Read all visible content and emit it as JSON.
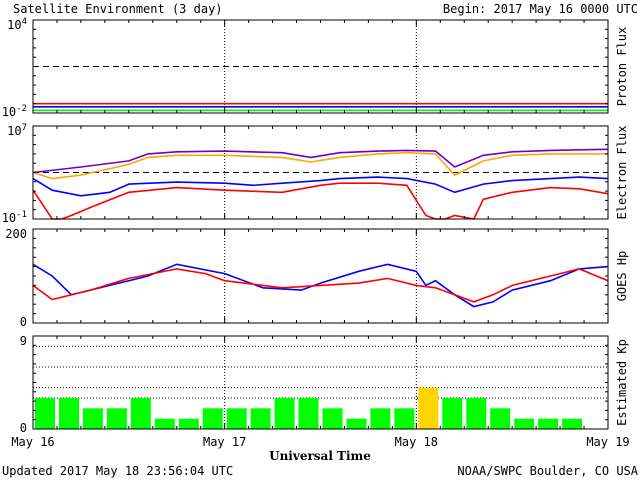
{
  "header": {
    "title": "Satellite Environment (3 day)",
    "begin": "Begin:  2017 May 16 0000 UTC"
  },
  "footer": {
    "updated": "Updated 2017 May 18 23:56:04 UTC",
    "credit": "NOAA/SWPC Boulder, CO USA"
  },
  "colors": {
    "red": "#ff0000",
    "blue": "#0000ff",
    "green": "#00ff00",
    "orange": "#ffa500",
    "purple": "#6a00c8",
    "kp_green": "#00ff00",
    "kp_yellow": "#ffd400"
  },
  "chart_data": [
    {
      "type": "line",
      "panel": "proton",
      "ylabel": "Proton Flux",
      "yscale": "log",
      "yticks": [
        {
          "mant": "10",
          "exp": "4"
        },
        {
          "mant": "10",
          "exp": "-2"
        }
      ],
      "ylim": [
        0.01,
        10000
      ],
      "threshold": 10,
      "x_range_days": [
        0,
        3
      ],
      "series": [
        {
          "color_key": "red",
          "x": [
            0,
            0.5,
            1,
            1.5,
            1.7,
            2,
            2.5,
            3
          ],
          "y": [
            0.04,
            0.04,
            0.04,
            0.04,
            0.04,
            0.04,
            0.04,
            0.04
          ]
        },
        {
          "color_key": "blue",
          "x": [
            0,
            0.5,
            1,
            1.5,
            1.7,
            2,
            2.5,
            3
          ],
          "y": [
            0.025,
            0.025,
            0.025,
            0.025,
            0.025,
            0.025,
            0.025,
            0.025
          ]
        },
        {
          "color_key": "green",
          "x": [
            0,
            0.5,
            1,
            1.5,
            1.7,
            2,
            2.5,
            3
          ],
          "y": [
            0.015,
            0.015,
            0.015,
            0.015,
            0.015,
            0.015,
            0.015,
            0.015
          ]
        }
      ]
    },
    {
      "type": "line",
      "panel": "electron",
      "ylabel": "Electron Flux",
      "yscale": "log",
      "yticks": [
        {
          "mant": "10",
          "exp": "7"
        },
        {
          "mant": "10",
          "exp": "-1"
        }
      ],
      "ylim": [
        0.1,
        10000000
      ],
      "threshold": 1000,
      "x_range_days": [
        0,
        3
      ],
      "series": [
        {
          "color_key": "purple",
          "x": [
            0,
            0.25,
            0.5,
            0.6,
            0.75,
            1,
            1.3,
            1.45,
            1.6,
            1.8,
            1.95,
            2.1,
            2.2,
            2.35,
            2.5,
            2.7,
            2.85,
            3
          ],
          "y": [
            1000,
            3000,
            10000,
            40000,
            60000,
            70000,
            50000,
            20000,
            50000,
            70000,
            80000,
            70000,
            3000,
            30000,
            60000,
            80000,
            90000,
            100000
          ]
        },
        {
          "color_key": "orange",
          "x": [
            0,
            0.1,
            0.25,
            0.5,
            0.6,
            0.75,
            1,
            1.3,
            1.45,
            1.6,
            1.8,
            1.95,
            2.1,
            2.2,
            2.35,
            2.5,
            2.7,
            2.85,
            3
          ],
          "y": [
            1000,
            300,
            600,
            5000,
            20000,
            30000,
            30000,
            20000,
            8000,
            20000,
            40000,
            50000,
            40000,
            600,
            10000,
            30000,
            40000,
            40000,
            40000
          ]
        },
        {
          "color_key": "blue",
          "x": [
            0,
            0.1,
            0.25,
            0.4,
            0.5,
            0.75,
            1,
            1.15,
            1.3,
            1.5,
            1.6,
            1.8,
            1.95,
            2.1,
            2.2,
            2.35,
            2.5,
            2.7,
            2.85,
            3
          ],
          "y": [
            300,
            30,
            10,
            20,
            100,
            150,
            120,
            80,
            120,
            200,
            300,
            400,
            300,
            100,
            20,
            100,
            200,
            300,
            400,
            300
          ]
        },
        {
          "color_key": "red",
          "x": [
            0,
            0.1,
            0.15,
            0.2,
            0.3,
            0.5,
            0.75,
            1,
            1.3,
            1.5,
            1.6,
            1.8,
            1.95,
            2.05,
            2.1,
            2.15,
            2.2,
            2.3,
            2.35,
            2.5,
            2.7,
            2.85,
            3
          ],
          "y": [
            30,
            0.1,
            0.1,
            0.2,
            1,
            20,
            50,
            30,
            20,
            80,
            120,
            120,
            80,
            0.2,
            0.1,
            0.1,
            0.2,
            0.1,
            5,
            20,
            50,
            40,
            15
          ]
        }
      ]
    },
    {
      "type": "line",
      "panel": "hp",
      "ylabel": "GOES Hp",
      "yscale": "linear",
      "yticks": [
        {
          "mant": "200",
          "exp": ""
        },
        {
          "mant": "0",
          "exp": ""
        }
      ],
      "ylim": [
        0,
        200
      ],
      "x_range_days": [
        0,
        3
      ],
      "series": [
        {
          "color_key": "blue",
          "x": [
            0,
            0.1,
            0.2,
            0.3,
            0.4,
            0.6,
            0.75,
            1,
            1.2,
            1.4,
            1.5,
            1.7,
            1.85,
            2,
            2.05,
            2.1,
            2.2,
            2.3,
            2.4,
            2.5,
            2.7,
            2.85,
            3
          ],
          "y": [
            125,
            100,
            60,
            70,
            80,
            100,
            125,
            105,
            75,
            70,
            85,
            110,
            125,
            110,
            80,
            90,
            60,
            35,
            45,
            70,
            90,
            115,
            120
          ]
        },
        {
          "color_key": "red",
          "x": [
            0,
            0.1,
            0.3,
            0.5,
            0.75,
            0.9,
            1,
            1.3,
            1.5,
            1.7,
            1.85,
            2,
            2.1,
            2.2,
            2.3,
            2.4,
            2.5,
            2.7,
            2.85,
            3
          ],
          "y": [
            80,
            50,
            70,
            95,
            115,
            105,
            90,
            75,
            80,
            85,
            95,
            80,
            75,
            60,
            45,
            60,
            80,
            100,
            115,
            90
          ]
        }
      ]
    },
    {
      "type": "bar",
      "panel": "kp",
      "ylabel": "Estimated Kp",
      "yticks": [
        {
          "mant": "9",
          "exp": ""
        },
        {
          "mant": "0",
          "exp": ""
        }
      ],
      "ylim": [
        0,
        9
      ],
      "gridlines": [
        3,
        4,
        6,
        8
      ],
      "x_range_days": [
        0,
        3
      ],
      "values": [
        3,
        3,
        2,
        2,
        3,
        1,
        1,
        2,
        2,
        2,
        3,
        3,
        2,
        1,
        2,
        2,
        4,
        3,
        3,
        2,
        1,
        1,
        1
      ],
      "highlight_from": 4
    }
  ],
  "xaxis": {
    "label": "Universal Time",
    "ticks": [
      "May 16",
      "May 17",
      "May 18",
      "May 19"
    ]
  }
}
